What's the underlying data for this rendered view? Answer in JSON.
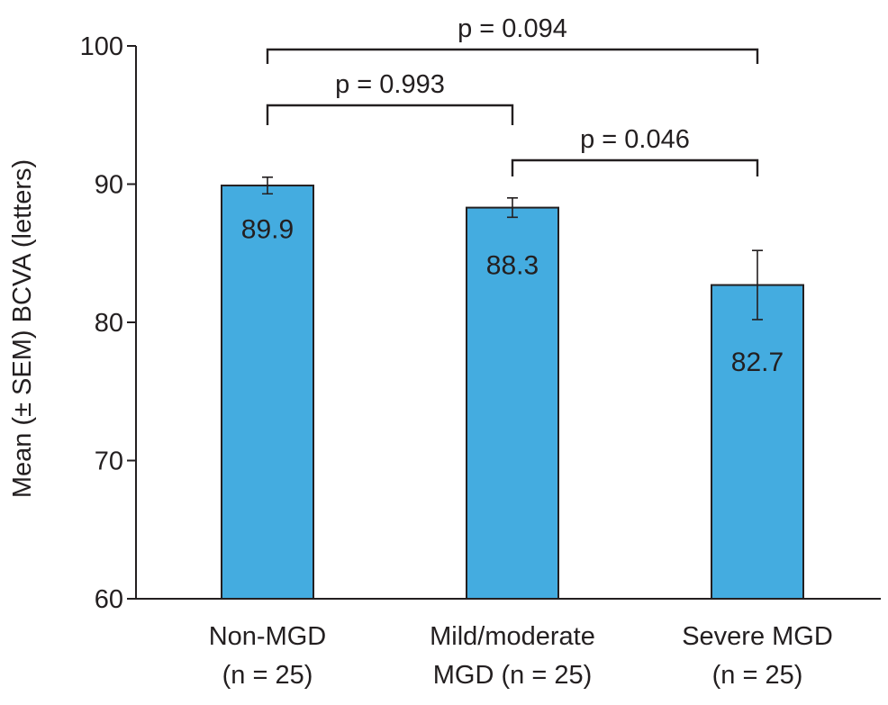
{
  "chart_data": {
    "type": "bar",
    "ylabel": "Mean (± SEM) BCVA (letters)",
    "xlabel": "",
    "ylim": [
      60,
      100
    ],
    "yticks": [
      60,
      70,
      80,
      90,
      100
    ],
    "yticks_text": [
      "60",
      "70",
      "80",
      "90",
      "100"
    ],
    "categories": [
      {
        "line1": "Non-MGD",
        "line2": "(n = 25)"
      },
      {
        "line1": "Mild/moderate",
        "line2": "MGD (n = 25)"
      },
      {
        "line1": "Severe MGD",
        "line2": "(n = 25)"
      }
    ],
    "values": [
      89.9,
      88.3,
      82.7
    ],
    "value_labels": [
      "89.9",
      "88.3",
      "82.7"
    ],
    "errors": [
      0.6,
      0.7,
      2.5
    ],
    "bar_color": "#44ace0",
    "comparisons": [
      {
        "from": 0,
        "to": 2,
        "label": "p = 0.094"
      },
      {
        "from": 0,
        "to": 1,
        "label": "p = 0.993"
      },
      {
        "from": 1,
        "to": 2,
        "label": "p = 0.046"
      }
    ]
  }
}
